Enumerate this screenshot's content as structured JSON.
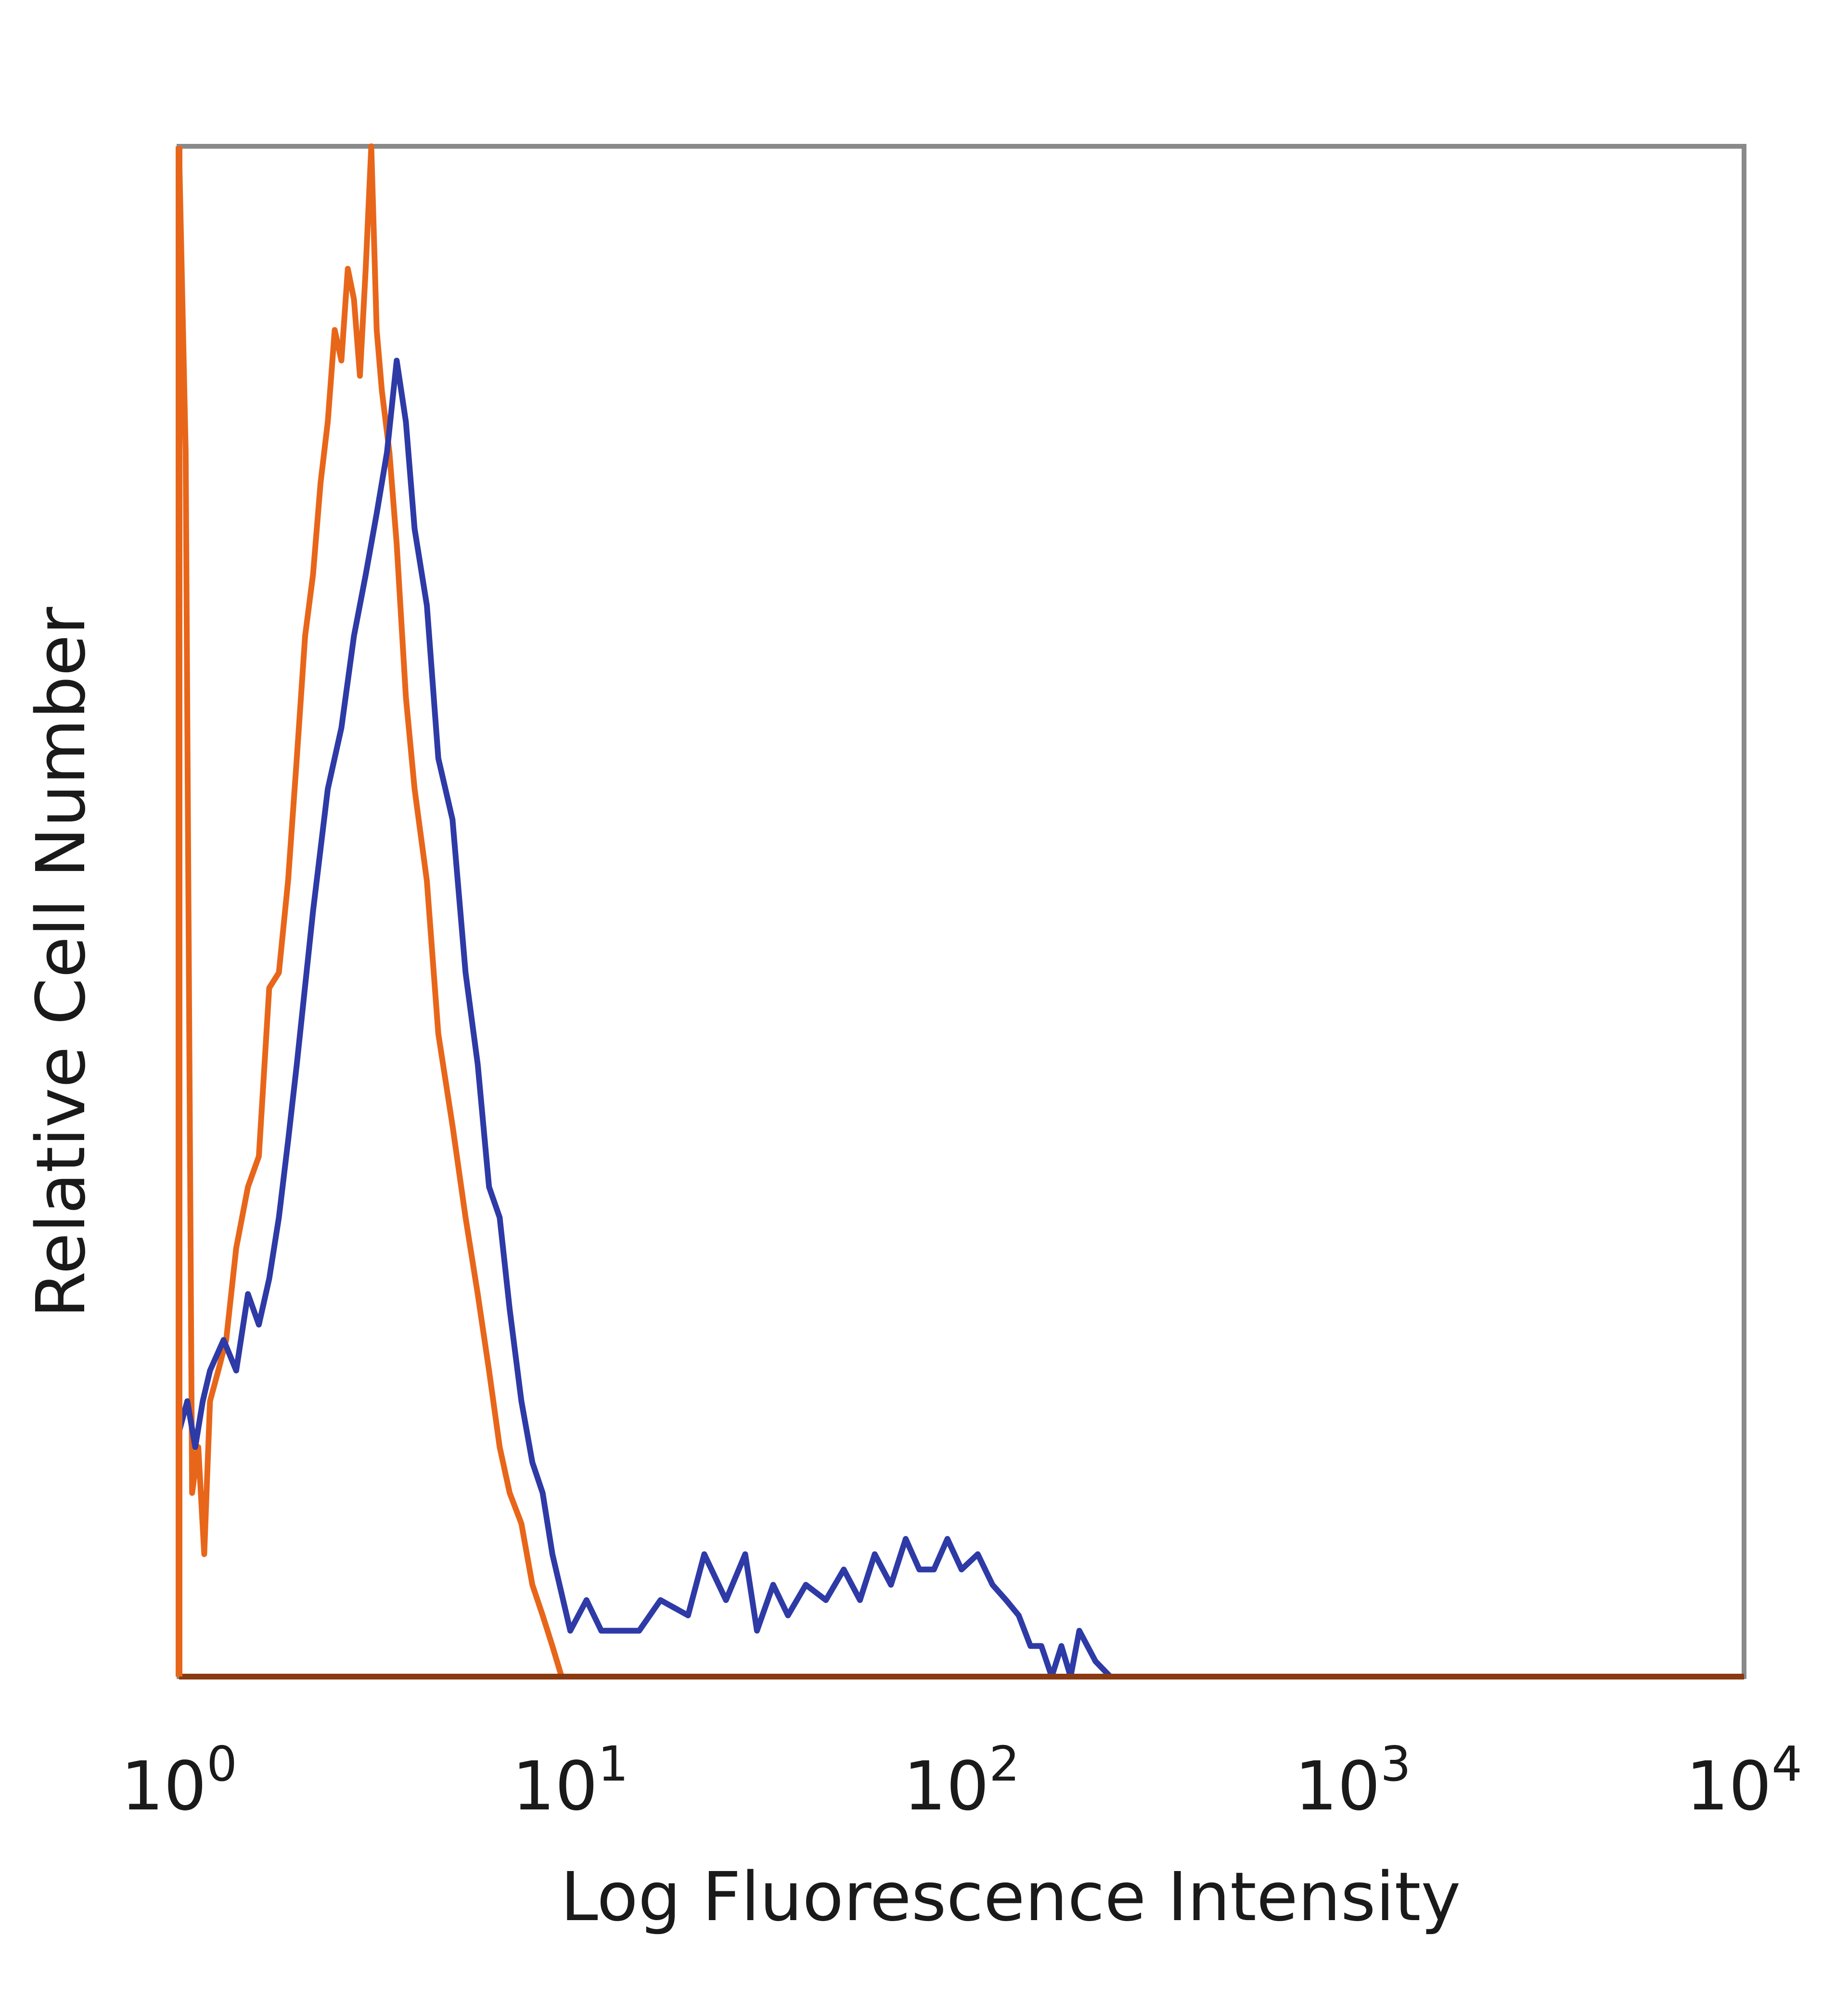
{
  "chart_data": {
    "type": "line",
    "xlabel": "Log Fluorescence Intensity",
    "ylabel": "Relative Cell Number",
    "x_scale": "log",
    "xlim": [
      1,
      10000
    ],
    "ylim": [
      0,
      100
    ],
    "grid": false,
    "legend": "none",
    "x_ticks": [
      {
        "base": "10",
        "exp": "0",
        "value": 1
      },
      {
        "base": "10",
        "exp": "1",
        "value": 10
      },
      {
        "base": "10",
        "exp": "2",
        "value": 100
      },
      {
        "base": "10",
        "exp": "3",
        "value": 1000
      },
      {
        "base": "10",
        "exp": "4",
        "value": 10000
      }
    ],
    "series": [
      {
        "color": "#e8661a",
        "x": [
          1.0,
          1.04,
          1.08,
          1.12,
          1.16,
          1.2,
          1.26,
          1.32,
          1.4,
          1.5,
          1.6,
          1.7,
          1.8,
          1.9,
          2.0,
          2.1,
          2.2,
          2.3,
          2.4,
          2.5,
          2.6,
          2.7,
          2.8,
          2.9,
          3.0,
          3.1,
          3.2,
          3.3,
          3.45,
          3.6,
          3.8,
          4.0,
          4.3,
          4.6,
          5.0,
          5.4,
          5.8,
          6.2,
          6.6,
          7.0,
          7.5,
          8.0,
          8.5,
          9.0,
          9.5,
          10.0
        ],
        "y": [
          100,
          80,
          12,
          15,
          8,
          18,
          20,
          22,
          28,
          32,
          34,
          45,
          46,
          52,
          60,
          68,
          72,
          78,
          82,
          88,
          86,
          92,
          90,
          85,
          92,
          100,
          88,
          84,
          80,
          74,
          64,
          58,
          52,
          42,
          36,
          30,
          25,
          20,
          15,
          12,
          10,
          6,
          4,
          2,
          0,
          0
        ]
      },
      {
        "color": "#2e3aa6",
        "x": [
          1.0,
          1.05,
          1.1,
          1.15,
          1.2,
          1.3,
          1.4,
          1.5,
          1.6,
          1.7,
          1.8,
          1.9,
          2.0,
          2.2,
          2.4,
          2.6,
          2.8,
          3.0,
          3.2,
          3.4,
          3.6,
          3.8,
          4.0,
          4.3,
          4.6,
          5.0,
          5.4,
          5.8,
          6.2,
          6.6,
          7.0,
          7.5,
          8.0,
          8.5,
          9.0,
          10.0,
          11,
          12,
          13,
          15,
          17,
          20,
          22,
          25,
          28,
          30,
          33,
          36,
          40,
          45,
          50,
          55,
          60,
          66,
          72,
          78,
          85,
          92,
          100,
          110,
          120,
          130,
          140,
          150,
          160,
          170,
          180,
          190,
          200,
          220,
          240
        ],
        "y": [
          16,
          18,
          15,
          18,
          20,
          22,
          20,
          25,
          23,
          26,
          30,
          35,
          40,
          50,
          58,
          62,
          68,
          72,
          76,
          80,
          86,
          82,
          75,
          70,
          60,
          56,
          46,
          40,
          32,
          30,
          24,
          18,
          14,
          12,
          8,
          3,
          5,
          3,
          3,
          3,
          5,
          4,
          8,
          5,
          8,
          3,
          6,
          4,
          6,
          5,
          7,
          5,
          8,
          6,
          9,
          7,
          7,
          9,
          7,
          8,
          6,
          5,
          4,
          2,
          2,
          0,
          2,
          0,
          3,
          1,
          0
        ]
      }
    ]
  }
}
